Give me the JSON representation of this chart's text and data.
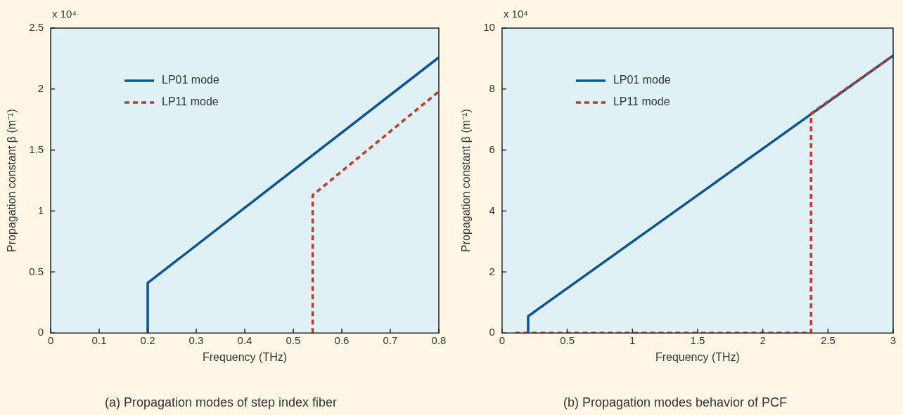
{
  "chart_data": [
    {
      "type": "line",
      "title": "(a) Propagation modes of step index fiber",
      "xlabel": "Frequency (THz)",
      "ylabel": "Propagation constant β (m⁻¹)",
      "annotations": [
        "x 10⁴"
      ],
      "xlim": [
        0,
        0.8
      ],
      "xticks": [
        0,
        0.1,
        0.2,
        0.3,
        0.4,
        0.5,
        0.6,
        0.7,
        0.8
      ],
      "ylim": [
        0,
        2.5
      ],
      "yticks": [
        0,
        0.5,
        1,
        1.5,
        2,
        2.5
      ],
      "grid": false,
      "legend": "top left",
      "marker": "none",
      "series": [
        {
          "name": "LP01 mode",
          "color": "#0b5494",
          "line_style": "solid",
          "x": [
            0.2,
            0.2,
            0.8
          ],
          "values": [
            0,
            0.41,
            2.26
          ]
        },
        {
          "name": "LP11 mode",
          "color": "#c0392b",
          "line_style": "dashed",
          "x": [
            0.54,
            0.54,
            0.8
          ],
          "values": [
            0,
            1.13,
            1.98
          ]
        }
      ]
    },
    {
      "type": "line",
      "title": "(b) Propagation modes behavior of PCF",
      "xlabel": "Frequency (THz)",
      "ylabel": "Propagation constant β (m⁻¹)",
      "annotations": [
        "x 10⁴"
      ],
      "xlim": [
        0,
        3
      ],
      "xticks": [
        0,
        0.5,
        1,
        1.5,
        2,
        2.5,
        3
      ],
      "ylim": [
        0,
        10
      ],
      "yticks": [
        0,
        2,
        4,
        6,
        8,
        10
      ],
      "grid": false,
      "legend": "top left",
      "marker": "none",
      "series": [
        {
          "name": "LP01 mode",
          "color": "#0b5494",
          "line_style": "solid",
          "x": [
            0.2,
            0.2,
            3
          ],
          "values": [
            0,
            0.55,
            9.1
          ]
        },
        {
          "name": "LP11 mode",
          "color": "#c0392b",
          "line_style": "dashed",
          "x": [
            0.1,
            2.37,
            2.37,
            3
          ],
          "values": [
            0,
            0,
            7.2,
            9.1
          ]
        }
      ]
    }
  ]
}
